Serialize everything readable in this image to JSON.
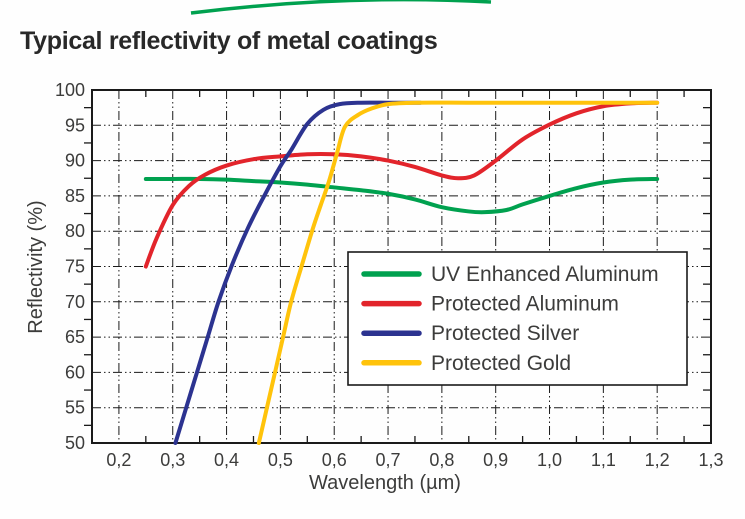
{
  "title": "Typical reflectivity of metal coatings",
  "colors": {
    "background": "#fefefe",
    "axis": "#1a1a1a",
    "tick_text": "#3c3c3b",
    "title_text": "#282828",
    "legend_border": "#1a1a1a",
    "legend_background": "#ffffff",
    "decorative_arc": "#00a14f"
  },
  "chart_data": {
    "type": "line",
    "title": "Typical reflectivity of metal coatings",
    "xlabel": "Wavelength (µm)",
    "ylabel": "Reflectivity (%)",
    "xlim": [
      0.15,
      1.3
    ],
    "ylim": [
      50,
      100
    ],
    "grid": "dash-dot lines at every 0.1 µm and every 5 %",
    "legend_position": "inside lower right",
    "x_tick_values": [
      0.2,
      0.3,
      0.4,
      0.5,
      0.6,
      0.7,
      0.8,
      0.9,
      1.0,
      1.1,
      1.2,
      1.3
    ],
    "x_tick_labels": [
      "0,2",
      "0,3",
      "0,4",
      "0,5",
      "0,6",
      "0,7",
      "0,8",
      "0,9",
      "1,0",
      "1,1",
      "1,2",
      "1,3"
    ],
    "x_minor_tick_values": [
      0.25,
      0.35,
      0.45,
      0.55,
      0.65,
      0.75,
      0.85,
      0.95,
      1.05,
      1.15,
      1.25
    ],
    "y_tick_values": [
      50,
      55,
      60,
      65,
      70,
      75,
      80,
      85,
      90,
      95,
      100
    ],
    "y_tick_labels": [
      "50",
      "55",
      "60",
      "65",
      "70",
      "75",
      "80",
      "85",
      "90",
      "95",
      "100"
    ],
    "y_minor_tick_values": [
      52.5,
      57.5,
      62.5,
      67.5,
      72.5,
      77.5,
      82.5,
      87.5,
      92.5,
      97.5
    ],
    "series": [
      {
        "name": "UV Enhanced Aluminum",
        "color": "#00a14f",
        "points": [
          [
            0.25,
            87.4
          ],
          [
            0.3,
            87.4
          ],
          [
            0.35,
            87.4
          ],
          [
            0.4,
            87.3
          ],
          [
            0.45,
            87.1
          ],
          [
            0.5,
            86.9
          ],
          [
            0.55,
            86.6
          ],
          [
            0.6,
            86.2
          ],
          [
            0.65,
            85.8
          ],
          [
            0.7,
            85.3
          ],
          [
            0.75,
            84.5
          ],
          [
            0.8,
            83.4
          ],
          [
            0.85,
            82.8
          ],
          [
            0.88,
            82.7
          ],
          [
            0.92,
            83.0
          ],
          [
            0.95,
            83.8
          ],
          [
            1.0,
            85.0
          ],
          [
            1.05,
            86.1
          ],
          [
            1.1,
            86.9
          ],
          [
            1.15,
            87.3
          ],
          [
            1.2,
            87.4
          ]
        ]
      },
      {
        "name": "Protected Aluminum",
        "color": "#e2242b",
        "points": [
          [
            0.25,
            75.0
          ],
          [
            0.27,
            79.0
          ],
          [
            0.3,
            83.7
          ],
          [
            0.33,
            86.4
          ],
          [
            0.36,
            88.0
          ],
          [
            0.4,
            89.3
          ],
          [
            0.45,
            90.2
          ],
          [
            0.5,
            90.6
          ],
          [
            0.55,
            90.9
          ],
          [
            0.6,
            90.9
          ],
          [
            0.65,
            90.6
          ],
          [
            0.7,
            90.0
          ],
          [
            0.75,
            89.1
          ],
          [
            0.8,
            87.9
          ],
          [
            0.83,
            87.5
          ],
          [
            0.86,
            87.9
          ],
          [
            0.9,
            90.0
          ],
          [
            0.95,
            93.0
          ],
          [
            1.0,
            95.1
          ],
          [
            1.05,
            96.7
          ],
          [
            1.1,
            97.7
          ],
          [
            1.15,
            98.1
          ],
          [
            1.2,
            98.2
          ]
        ]
      },
      {
        "name": "Protected Silver",
        "color": "#2c3390",
        "points": [
          [
            0.305,
            50.0
          ],
          [
            0.325,
            55.0
          ],
          [
            0.345,
            60.0
          ],
          [
            0.365,
            65.0
          ],
          [
            0.385,
            70.0
          ],
          [
            0.41,
            75.2
          ],
          [
            0.44,
            80.5
          ],
          [
            0.47,
            85.0
          ],
          [
            0.5,
            89.2
          ],
          [
            0.52,
            91.5
          ],
          [
            0.55,
            95.2
          ],
          [
            0.58,
            97.2
          ],
          [
            0.61,
            98.0
          ],
          [
            0.65,
            98.2
          ],
          [
            0.7,
            98.2
          ],
          [
            0.76,
            98.2
          ]
        ]
      },
      {
        "name": "Protected Gold",
        "color": "#ffc30b",
        "points": [
          [
            0.46,
            50.0
          ],
          [
            0.475,
            55.0
          ],
          [
            0.49,
            60.0
          ],
          [
            0.505,
            65.0
          ],
          [
            0.52,
            70.0
          ],
          [
            0.54,
            75.2
          ],
          [
            0.56,
            80.3
          ],
          [
            0.575,
            83.7
          ],
          [
            0.59,
            87.0
          ],
          [
            0.605,
            91.0
          ],
          [
            0.62,
            94.8
          ],
          [
            0.645,
            96.5
          ],
          [
            0.67,
            97.4
          ],
          [
            0.7,
            98.0
          ],
          [
            0.75,
            98.2
          ],
          [
            0.85,
            98.2
          ],
          [
            0.95,
            98.2
          ],
          [
            1.05,
            98.2
          ],
          [
            1.15,
            98.2
          ],
          [
            1.2,
            98.2
          ]
        ]
      }
    ]
  }
}
